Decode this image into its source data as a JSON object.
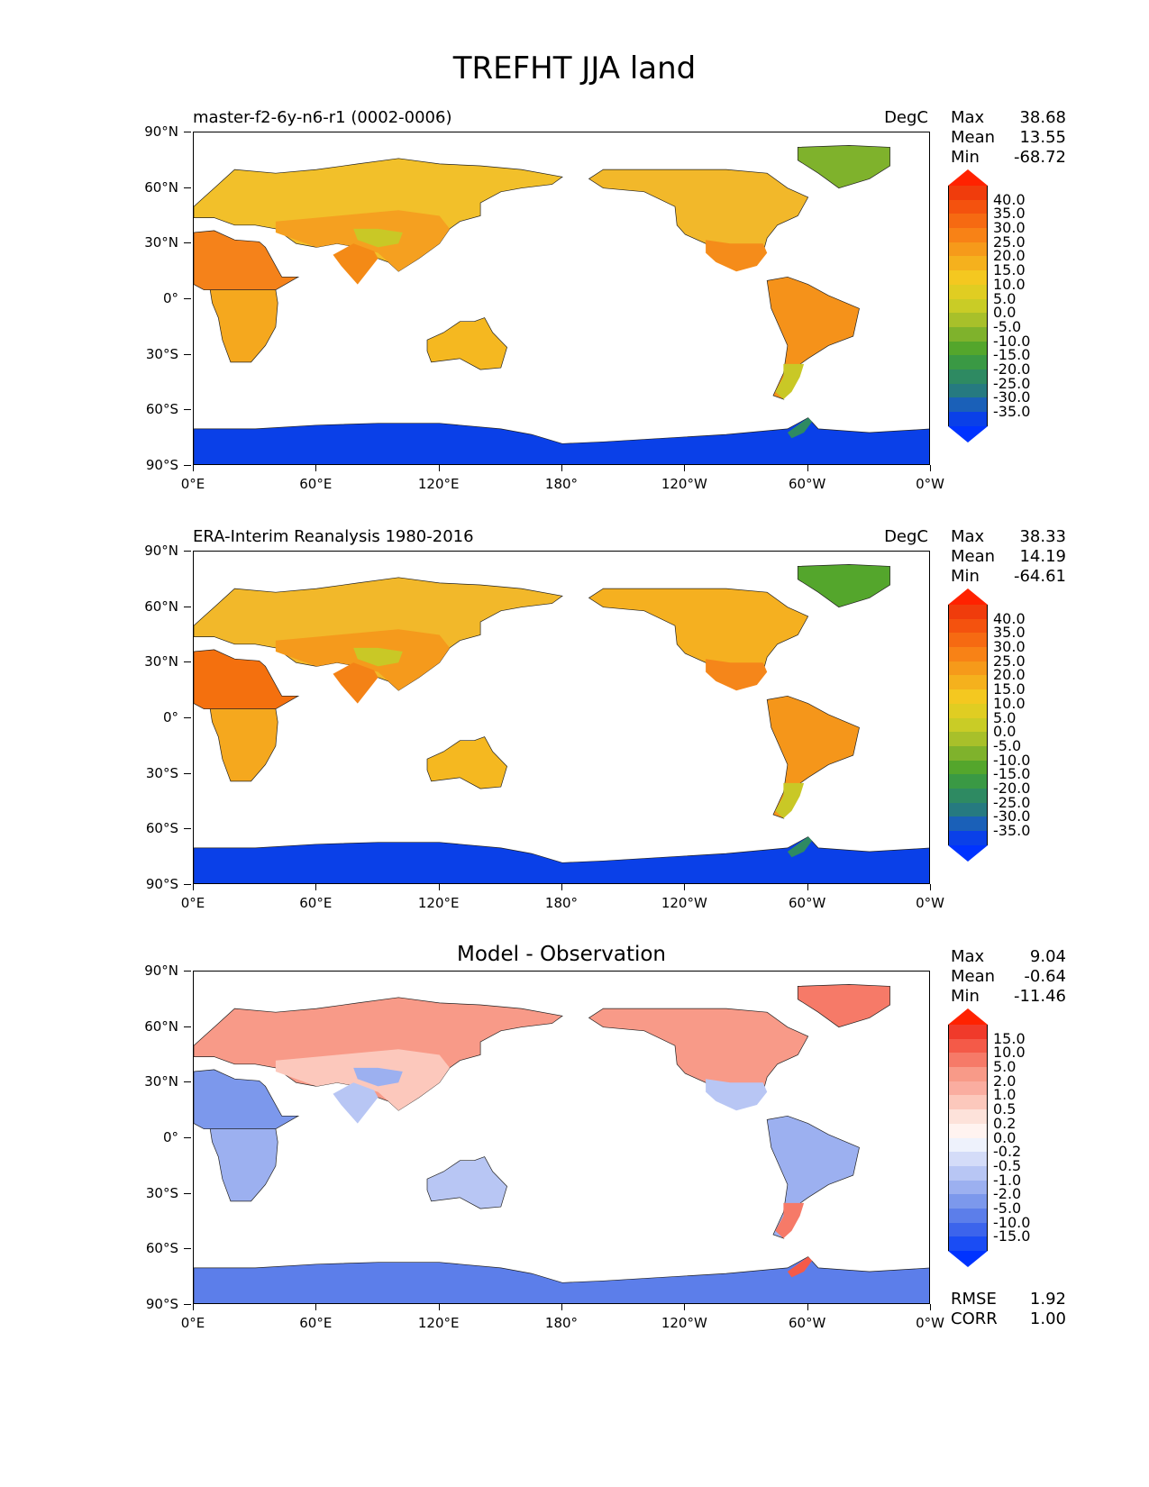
{
  "figure_title": "TREFHT JJA land",
  "lat_ticks": [
    "90°N",
    "60°N",
    "30°N",
    "0°",
    "30°S",
    "60°S",
    "90°S"
  ],
  "lon_ticks": [
    "0°E",
    "60°E",
    "120°E",
    "180°",
    "120°W",
    "60°W",
    "0°W"
  ],
  "panels": [
    {
      "title": "master-f2-6y-n6-r1 (0002-0006)",
      "units": "DegC",
      "stats": {
        "max_label": "Max",
        "max": "38.68",
        "mean_label": "Mean",
        "mean": "13.55",
        "min_label": "Min",
        "min": "-68.72"
      },
      "colorbar": {
        "labels": [
          "40.0",
          "35.0",
          "30.0",
          "25.0",
          "20.0",
          "15.0",
          "10.0",
          "5.0",
          "0.0",
          "-5.0",
          "-10.0",
          "-15.0",
          "-20.0",
          "-25.0",
          "-30.0",
          "-35.0"
        ],
        "colors": [
          "#f03c0c",
          "#f4520e",
          "#f66a12",
          "#f88216",
          "#f69a1a",
          "#f5b11d",
          "#f4c820",
          "#e0cd22",
          "#c9cc26",
          "#a8c02a",
          "#7fb22c",
          "#54a62c",
          "#3a9944",
          "#2e8a62",
          "#267a80",
          "#1a60b8",
          "#0a40e8"
        ],
        "over_color": "#ff2200",
        "under_color": "#0033ff"
      }
    },
    {
      "title": "ERA-Interim Reanalysis 1980-2016",
      "units": "DegC",
      "stats": {
        "max_label": "Max",
        "max": "38.33",
        "mean_label": "Mean",
        "mean": "14.19",
        "min_label": "Min",
        "min": "-64.61"
      },
      "colorbar": {
        "labels": [
          "40.0",
          "35.0",
          "30.0",
          "25.0",
          "20.0",
          "15.0",
          "10.0",
          "5.0",
          "0.0",
          "-5.0",
          "-10.0",
          "-15.0",
          "-20.0",
          "-25.0",
          "-30.0",
          "-35.0"
        ],
        "colors": [
          "#f03c0c",
          "#f4520e",
          "#f66a12",
          "#f88216",
          "#f69a1a",
          "#f5b11d",
          "#f4c820",
          "#e0cd22",
          "#c9cc26",
          "#a8c02a",
          "#7fb22c",
          "#54a62c",
          "#3a9944",
          "#2e8a62",
          "#267a80",
          "#1a60b8",
          "#0a40e8"
        ],
        "over_color": "#ff2200",
        "under_color": "#0033ff"
      }
    },
    {
      "title": "Model - Observation",
      "units": "",
      "stats": {
        "max_label": "Max",
        "max": "9.04",
        "mean_label": "Mean",
        "mean": "-0.64",
        "min_label": "Min",
        "min": "-11.46"
      },
      "colorbar": {
        "labels": [
          "15.0",
          "10.0",
          "5.0",
          "2.0",
          "1.0",
          "0.5",
          "0.2",
          "0.0",
          "-0.2",
          "-0.5",
          "-1.0",
          "-2.0",
          "-5.0",
          "-10.0",
          "-15.0"
        ],
        "colors": [
          "#f03a2a",
          "#f45a48",
          "#f67a68",
          "#f89a88",
          "#faada0",
          "#fcc8bc",
          "#fde2da",
          "#fff3f0",
          "#eef2fc",
          "#d4dcf8",
          "#b8c6f4",
          "#9cb0f0",
          "#7c98ec",
          "#5c7eea",
          "#3c64ec",
          "#1a4cf4"
        ],
        "over_color": "#ff2200",
        "under_color": "#0033ff"
      },
      "rmse_label": "RMSE",
      "rmse": "1.92",
      "corr_label": "CORR",
      "corr": "1.00"
    }
  ],
  "map_colors": {
    "p1": {
      "eurasia": "#f2c02a",
      "asia_warm": "#f5a020",
      "tibet": "#c9c826",
      "india": "#f48a16",
      "africa_n": "#f5821a",
      "africa_s": "#f5a81e",
      "australia": "#f5b820",
      "na": "#f2b82a",
      "na_south": "#f58c1a",
      "greenland": "#7fb22c",
      "sa": "#f5921a",
      "sa_south": "#c9c826",
      "antarctica": "#0a40e8",
      "antarctica_pen": "#2e8a62"
    },
    "p2": {
      "eurasia": "#f2b82a",
      "asia_warm": "#f59a1c",
      "tibet": "#c9c826",
      "india": "#f48216",
      "africa_n": "#f4700e",
      "africa_s": "#f5a81e",
      "australia": "#f5b820",
      "na": "#f5b020",
      "na_south": "#f5861a",
      "greenland": "#54a62c",
      "sa": "#f5961a",
      "sa_south": "#c9c826",
      "antarctica": "#0a40e8",
      "antarctica_pen": "#2e8a62"
    },
    "p3": {
      "eurasia": "#f89a88",
      "asia_warm": "#fcc8bc",
      "tibet": "#9cb0f0",
      "india": "#b8c6f4",
      "africa_n": "#7c98ec",
      "africa_s": "#9cb0f0",
      "australia": "#b8c6f4",
      "na": "#f89a88",
      "na_south": "#b8c6f4",
      "greenland": "#f67a68",
      "sa": "#9cb0f0",
      "sa_south": "#f67a68",
      "antarctica": "#5c7eea",
      "antarctica_pen": "#f45a48"
    }
  }
}
